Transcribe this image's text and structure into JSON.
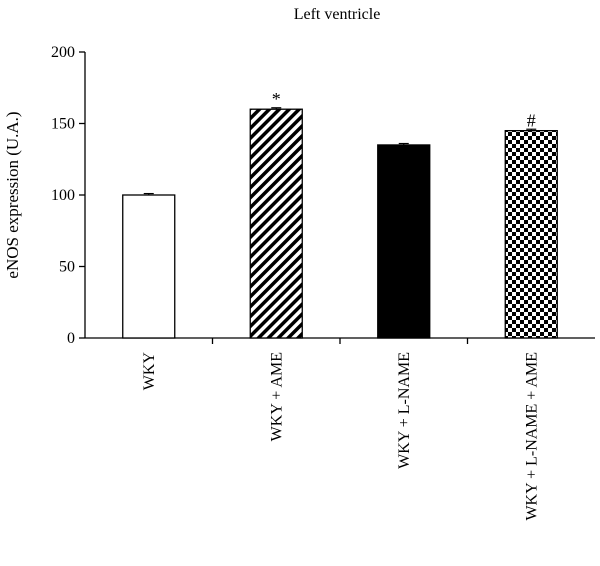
{
  "chart_data": {
    "type": "bar",
    "title": "Left ventricle",
    "ylabel": "eNOS expression (U.A.)",
    "xlabel": "",
    "ylim": [
      0,
      200
    ],
    "yticks": [
      0,
      50,
      100,
      150,
      200
    ],
    "grid": false,
    "categories": [
      "WKY",
      "WKY + AME",
      "WKY + L-NAME",
      "WKY + L-NAME + AME"
    ],
    "values": [
      100,
      160,
      135,
      145
    ],
    "errors": [
      1,
      1,
      1,
      1
    ],
    "annotations": [
      "",
      "*",
      "",
      "#"
    ],
    "fills": [
      "white",
      "diagonal-hatch",
      "black",
      "checkerboard"
    ],
    "colors": {
      "bar_fill_solid": "#000000",
      "bar_fill_open": "#ffffff",
      "axis": "#000000"
    }
  }
}
